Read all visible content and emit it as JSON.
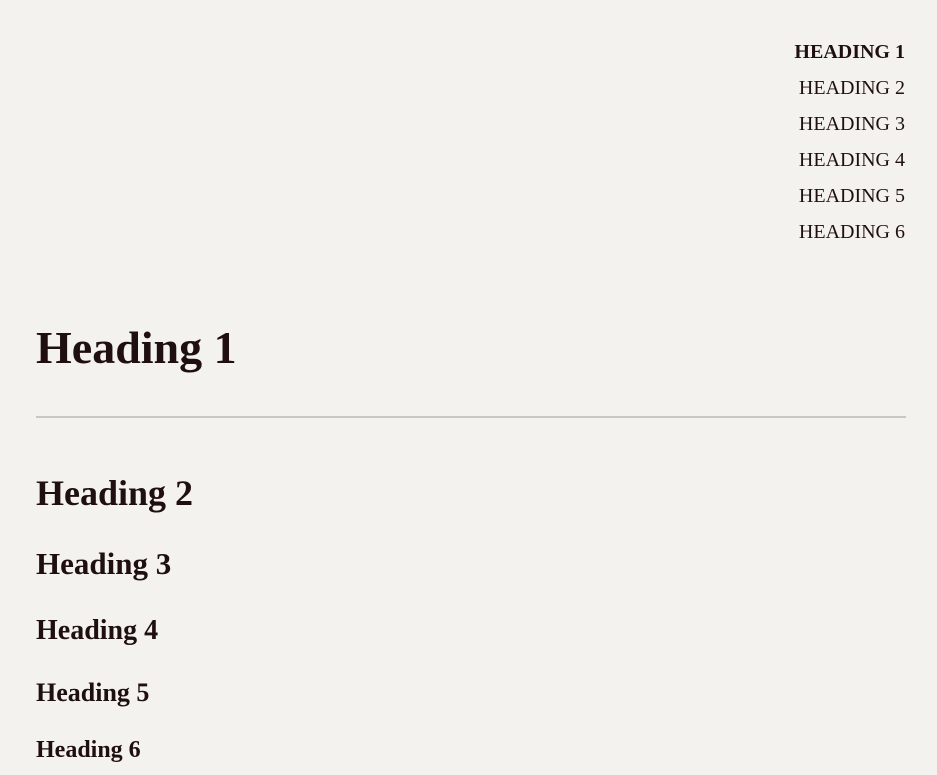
{
  "toc": {
    "items": [
      {
        "label": "HEADING 1",
        "active": true
      },
      {
        "label": "HEADING 2",
        "active": false
      },
      {
        "label": "HEADING 3",
        "active": false
      },
      {
        "label": "HEADING 4",
        "active": false
      },
      {
        "label": "HEADING 5",
        "active": false
      },
      {
        "label": "HEADING 6",
        "active": false
      }
    ]
  },
  "content": {
    "heading1": "Heading 1",
    "heading2": "Heading 2",
    "heading3": "Heading 3",
    "heading4": "Heading 4",
    "heading5": "Heading 5",
    "heading6": "Heading 6"
  },
  "colors": {
    "background": "#f3f2ef",
    "text": "#1f0f10",
    "rule": "#c9c7c4"
  }
}
